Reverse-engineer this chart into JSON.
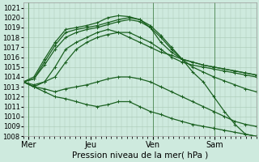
{
  "xlabel": "Pression niveau de la mer( hPa )",
  "ylim": [
    1008,
    1021.5
  ],
  "xlim": [
    0,
    90
  ],
  "xtick_positions": [
    2,
    26,
    50,
    74
  ],
  "xtick_labels": [
    "Mer",
    "Jeu",
    "Ven",
    "Sam"
  ],
  "ytick_positions": [
    1008,
    1009,
    1010,
    1011,
    1012,
    1013,
    1014,
    1015,
    1016,
    1017,
    1018,
    1019,
    1020,
    1021
  ],
  "bg_color": "#ceeade",
  "grid_color": "#a8c8b4",
  "line_color": "#1a6020",
  "line_width": 0.9,
  "marker": "+",
  "marker_size": 2.5,
  "vline_x": [
    2,
    50,
    74
  ],
  "series": [
    [
      1013.5,
      1013.8,
      1015.5,
      1017.2,
      1018.5,
      1018.8,
      1019.0,
      1019.2,
      1019.5,
      1019.8,
      1020.0,
      1019.8,
      1019.2,
      1018.2,
      1017.0,
      1015.8,
      1014.5,
      1013.5,
      1012.0,
      1010.5,
      1009.2,
      1008.2,
      1008.0
    ],
    [
      1013.5,
      1013.8,
      1015.2,
      1016.8,
      1018.0,
      1018.5,
      1018.8,
      1019.0,
      1019.3,
      1019.6,
      1019.8,
      1019.6,
      1019.0,
      1018.0,
      1016.8,
      1015.8,
      1015.0,
      1014.5,
      1014.0,
      1013.6,
      1013.2,
      1012.8,
      1012.5
    ],
    [
      1013.5,
      1014.0,
      1015.8,
      1017.5,
      1018.8,
      1019.0,
      1019.2,
      1019.5,
      1020.0,
      1020.2,
      1020.1,
      1019.8,
      1019.0,
      1017.5,
      1016.5,
      1015.8,
      1015.5,
      1015.2,
      1015.0,
      1014.8,
      1014.6,
      1014.4,
      1014.2
    ],
    [
      1013.5,
      1013.2,
      1013.5,
      1014.0,
      1015.5,
      1016.8,
      1017.5,
      1018.0,
      1018.3,
      1018.5,
      1018.5,
      1018.0,
      1017.5,
      1016.8,
      1016.0,
      1015.5,
      1015.2,
      1015.0,
      1014.8,
      1014.6,
      1014.4,
      1014.2,
      1014.0
    ],
    [
      1013.5,
      1013.0,
      1013.5,
      1015.0,
      1016.8,
      1017.5,
      1018.0,
      1018.5,
      1018.8,
      1018.5,
      1018.0,
      1017.5,
      1017.0,
      1016.5,
      1016.2,
      1015.8,
      1015.5,
      1015.2,
      1015.0,
      1014.8,
      1014.6,
      1014.4,
      1014.2
    ],
    [
      1013.5,
      1013.0,
      1012.8,
      1012.5,
      1012.8,
      1013.0,
      1013.2,
      1013.5,
      1013.8,
      1014.0,
      1014.0,
      1013.8,
      1013.5,
      1013.0,
      1012.5,
      1012.0,
      1011.5,
      1011.0,
      1010.5,
      1010.0,
      1009.5,
      1009.2,
      1009.0
    ],
    [
      1013.5,
      1013.0,
      1012.5,
      1012.0,
      1011.8,
      1011.5,
      1011.2,
      1011.0,
      1011.2,
      1011.5,
      1011.5,
      1011.0,
      1010.5,
      1010.2,
      1009.8,
      1009.5,
      1009.2,
      1009.0,
      1008.8,
      1008.6,
      1008.4,
      1008.2,
      1008.0
    ]
  ]
}
